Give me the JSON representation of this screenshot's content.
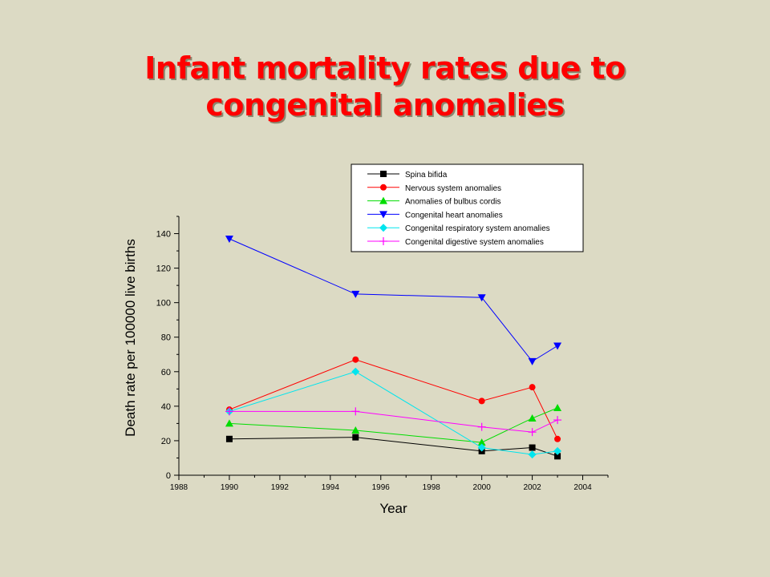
{
  "slide": {
    "title_line1": "Infant mortality rates due to",
    "title_line2": "congenital anomalies"
  },
  "chart_data": {
    "type": "line",
    "title": "",
    "xlabel": "Year",
    "ylabel": "Death rate per 100000 live births",
    "xlim": [
      1988,
      2005
    ],
    "ylim": [
      0,
      150
    ],
    "xticks": [
      1988,
      1990,
      1992,
      1994,
      1996,
      1998,
      2000,
      2002,
      2004
    ],
    "yticks": [
      0,
      20,
      40,
      60,
      80,
      100,
      120,
      140
    ],
    "x": [
      1990,
      1995,
      2000,
      2002,
      2003
    ],
    "grid": false,
    "legend_position": "top",
    "series": [
      {
        "name": "Spina bifida",
        "values": [
          21,
          22,
          14,
          16,
          11
        ],
        "color": "#000000",
        "marker": "square"
      },
      {
        "name": "Nervous system anomalies",
        "values": [
          38,
          67,
          43,
          51,
          21
        ],
        "color": "#ff0000",
        "marker": "circle"
      },
      {
        "name": "Anomalies of bulbus cordis",
        "values": [
          30,
          26,
          19,
          33,
          39
        ],
        "color": "#00dd00",
        "marker": "triangle-up"
      },
      {
        "name": "Congenital heart anomalies",
        "values": [
          137,
          105,
          103,
          66,
          75
        ],
        "color": "#0000ff",
        "marker": "triangle-down"
      },
      {
        "name": "Congenital respiratory system anomalies",
        "values": [
          37,
          60,
          16,
          12,
          14
        ],
        "color": "#00e5ee",
        "marker": "diamond"
      },
      {
        "name": "Congenital digestive system anomalies",
        "values": [
          37,
          37,
          28,
          25,
          32
        ],
        "color": "#ff00ff",
        "marker": "plus"
      }
    ]
  }
}
